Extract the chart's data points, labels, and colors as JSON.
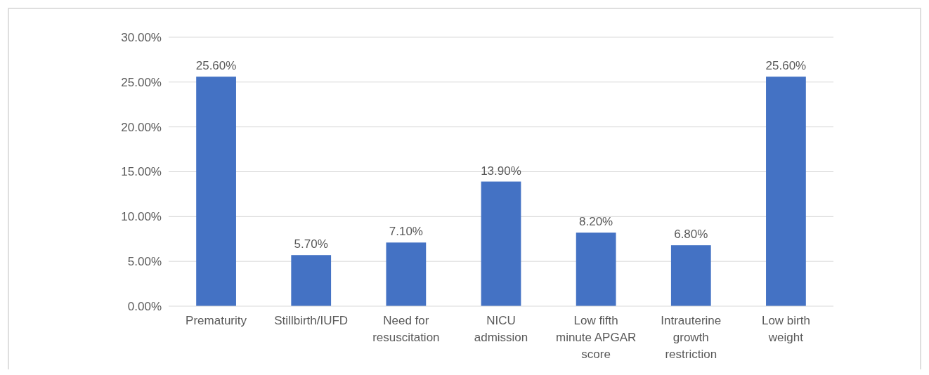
{
  "chart_data": {
    "type": "bar",
    "categories": [
      "Prematurity",
      "Stillbirth/IUFD",
      "Need for resuscitation",
      "NICU admission",
      "Low fifth minute APGAR score",
      "Intrauterine growth restriction",
      "Low birth weight"
    ],
    "values": [
      25.6,
      5.7,
      7.1,
      13.9,
      8.2,
      6.8,
      25.6
    ],
    "value_labels": [
      "25.60%",
      "5.70%",
      "7.10%",
      "13.90%",
      "8.20%",
      "6.80%",
      "25.60%"
    ],
    "color": "#4472c4",
    "ylim": [
      0,
      30
    ],
    "yticks": [
      {
        "value": 0,
        "label": "0.00%"
      },
      {
        "value": 5,
        "label": "5.00%"
      },
      {
        "value": 10,
        "label": "10.00%"
      },
      {
        "value": 15,
        "label": "15.00%"
      },
      {
        "value": 20,
        "label": "20.00%"
      },
      {
        "value": 25,
        "label": "25.00%"
      },
      {
        "value": 30,
        "label": "30.00%"
      }
    ],
    "grid": "y"
  }
}
